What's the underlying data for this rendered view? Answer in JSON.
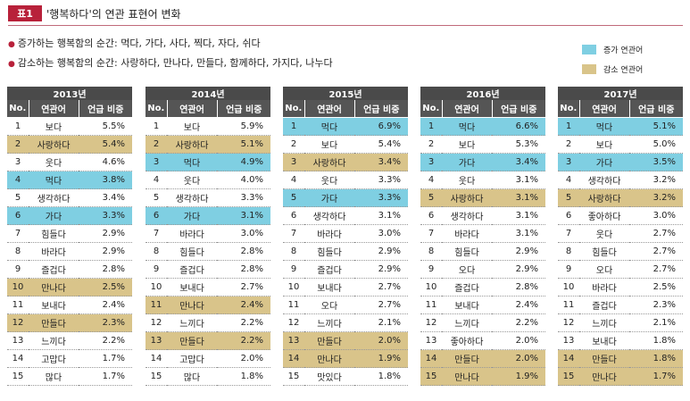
{
  "header": {
    "badge": "표1",
    "title": "'행복하다'의 연관 표현어 변화"
  },
  "bullets": {
    "increase": "증가하는 행복함의 순간: 먹다, 가다, 사다, 찍다, 자다, 쉬다",
    "decrease": "감소하는 행복함의 순간: 사랑하다, 만나다, 만들다, 함께하다, 가지다, 나누다"
  },
  "legend": {
    "increase_label": "증가 연관어",
    "decrease_label": "감소 연관어"
  },
  "colors": {
    "increase": "#7fcfe2",
    "decrease": "#d9c48a",
    "header": "#4a4a4a",
    "accent": "#b8213a"
  },
  "columns": {
    "no": "No.",
    "word": "연관어",
    "pct": "언급 비중"
  },
  "tables": [
    {
      "year": "2013년",
      "rows": [
        {
          "no": "1",
          "word": "보다",
          "pct": "5.5%",
          "hl": ""
        },
        {
          "no": "2",
          "word": "사랑하다",
          "pct": "5.4%",
          "hl": "dec"
        },
        {
          "no": "3",
          "word": "웃다",
          "pct": "4.6%",
          "hl": ""
        },
        {
          "no": "4",
          "word": "먹다",
          "pct": "3.8%",
          "hl": "inc"
        },
        {
          "no": "5",
          "word": "생각하다",
          "pct": "3.4%",
          "hl": ""
        },
        {
          "no": "6",
          "word": "가다",
          "pct": "3.3%",
          "hl": "inc"
        },
        {
          "no": "7",
          "word": "힘들다",
          "pct": "2.9%",
          "hl": ""
        },
        {
          "no": "8",
          "word": "바라다",
          "pct": "2.9%",
          "hl": ""
        },
        {
          "no": "9",
          "word": "즐겁다",
          "pct": "2.8%",
          "hl": ""
        },
        {
          "no": "10",
          "word": "만나다",
          "pct": "2.5%",
          "hl": "dec"
        },
        {
          "no": "11",
          "word": "보내다",
          "pct": "2.4%",
          "hl": ""
        },
        {
          "no": "12",
          "word": "만들다",
          "pct": "2.3%",
          "hl": "dec"
        },
        {
          "no": "13",
          "word": "느끼다",
          "pct": "2.2%",
          "hl": ""
        },
        {
          "no": "14",
          "word": "고맙다",
          "pct": "1.7%",
          "hl": ""
        },
        {
          "no": "15",
          "word": "많다",
          "pct": "1.7%",
          "hl": ""
        }
      ]
    },
    {
      "year": "2014년",
      "rows": [
        {
          "no": "1",
          "word": "보다",
          "pct": "5.9%",
          "hl": ""
        },
        {
          "no": "2",
          "word": "사랑하다",
          "pct": "5.1%",
          "hl": "dec"
        },
        {
          "no": "3",
          "word": "먹다",
          "pct": "4.9%",
          "hl": "inc"
        },
        {
          "no": "4",
          "word": "웃다",
          "pct": "4.0%",
          "hl": ""
        },
        {
          "no": "5",
          "word": "생각하다",
          "pct": "3.3%",
          "hl": ""
        },
        {
          "no": "6",
          "word": "가다",
          "pct": "3.1%",
          "hl": "inc"
        },
        {
          "no": "7",
          "word": "바라다",
          "pct": "3.0%",
          "hl": ""
        },
        {
          "no": "8",
          "word": "힘들다",
          "pct": "2.8%",
          "hl": ""
        },
        {
          "no": "9",
          "word": "즐겁다",
          "pct": "2.8%",
          "hl": ""
        },
        {
          "no": "10",
          "word": "보내다",
          "pct": "2.7%",
          "hl": ""
        },
        {
          "no": "11",
          "word": "만나다",
          "pct": "2.4%",
          "hl": "dec"
        },
        {
          "no": "12",
          "word": "느끼다",
          "pct": "2.2%",
          "hl": ""
        },
        {
          "no": "13",
          "word": "만들다",
          "pct": "2.2%",
          "hl": "dec"
        },
        {
          "no": "14",
          "word": "고맙다",
          "pct": "2.0%",
          "hl": ""
        },
        {
          "no": "15",
          "word": "많다",
          "pct": "1.8%",
          "hl": ""
        }
      ]
    },
    {
      "year": "2015년",
      "rows": [
        {
          "no": "1",
          "word": "먹다",
          "pct": "6.9%",
          "hl": "inc"
        },
        {
          "no": "2",
          "word": "보다",
          "pct": "5.4%",
          "hl": ""
        },
        {
          "no": "3",
          "word": "사랑하다",
          "pct": "3.4%",
          "hl": "dec"
        },
        {
          "no": "4",
          "word": "웃다",
          "pct": "3.3%",
          "hl": ""
        },
        {
          "no": "5",
          "word": "가다",
          "pct": "3.3%",
          "hl": "inc"
        },
        {
          "no": "6",
          "word": "생각하다",
          "pct": "3.1%",
          "hl": ""
        },
        {
          "no": "7",
          "word": "바라다",
          "pct": "3.0%",
          "hl": ""
        },
        {
          "no": "8",
          "word": "힘들다",
          "pct": "2.9%",
          "hl": ""
        },
        {
          "no": "9",
          "word": "즐겁다",
          "pct": "2.9%",
          "hl": ""
        },
        {
          "no": "10",
          "word": "보내다",
          "pct": "2.7%",
          "hl": ""
        },
        {
          "no": "11",
          "word": "오다",
          "pct": "2.7%",
          "hl": ""
        },
        {
          "no": "12",
          "word": "느끼다",
          "pct": "2.1%",
          "hl": ""
        },
        {
          "no": "13",
          "word": "만들다",
          "pct": "2.0%",
          "hl": "dec"
        },
        {
          "no": "14",
          "word": "만나다",
          "pct": "1.9%",
          "hl": "dec"
        },
        {
          "no": "15",
          "word": "맛있다",
          "pct": "1.8%",
          "hl": ""
        }
      ]
    },
    {
      "year": "2016년",
      "rows": [
        {
          "no": "1",
          "word": "먹다",
          "pct": "6.6%",
          "hl": "inc"
        },
        {
          "no": "2",
          "word": "보다",
          "pct": "5.3%",
          "hl": ""
        },
        {
          "no": "3",
          "word": "가다",
          "pct": "3.4%",
          "hl": "inc"
        },
        {
          "no": "4",
          "word": "웃다",
          "pct": "3.1%",
          "hl": ""
        },
        {
          "no": "5",
          "word": "사랑하다",
          "pct": "3.1%",
          "hl": "dec"
        },
        {
          "no": "6",
          "word": "생각하다",
          "pct": "3.1%",
          "hl": ""
        },
        {
          "no": "7",
          "word": "바라다",
          "pct": "3.1%",
          "hl": ""
        },
        {
          "no": "8",
          "word": "힘들다",
          "pct": "2.9%",
          "hl": ""
        },
        {
          "no": "9",
          "word": "오다",
          "pct": "2.9%",
          "hl": ""
        },
        {
          "no": "10",
          "word": "즐겁다",
          "pct": "2.8%",
          "hl": ""
        },
        {
          "no": "11",
          "word": "보내다",
          "pct": "2.4%",
          "hl": ""
        },
        {
          "no": "12",
          "word": "느끼다",
          "pct": "2.2%",
          "hl": ""
        },
        {
          "no": "13",
          "word": "좋아하다",
          "pct": "2.0%",
          "hl": ""
        },
        {
          "no": "14",
          "word": "만들다",
          "pct": "2.0%",
          "hl": "dec"
        },
        {
          "no": "15",
          "word": "만나다",
          "pct": "1.9%",
          "hl": "dec"
        }
      ]
    },
    {
      "year": "2017년",
      "rows": [
        {
          "no": "1",
          "word": "먹다",
          "pct": "5.1%",
          "hl": "inc"
        },
        {
          "no": "2",
          "word": "보다",
          "pct": "5.0%",
          "hl": ""
        },
        {
          "no": "3",
          "word": "가다",
          "pct": "3.5%",
          "hl": "inc"
        },
        {
          "no": "4",
          "word": "생각하다",
          "pct": "3.2%",
          "hl": ""
        },
        {
          "no": "5",
          "word": "사랑하다",
          "pct": "3.2%",
          "hl": "dec"
        },
        {
          "no": "6",
          "word": "좋아하다",
          "pct": "3.0%",
          "hl": ""
        },
        {
          "no": "7",
          "word": "웃다",
          "pct": "2.7%",
          "hl": ""
        },
        {
          "no": "8",
          "word": "힘들다",
          "pct": "2.7%",
          "hl": ""
        },
        {
          "no": "9",
          "word": "오다",
          "pct": "2.7%",
          "hl": ""
        },
        {
          "no": "10",
          "word": "바라다",
          "pct": "2.5%",
          "hl": ""
        },
        {
          "no": "11",
          "word": "즐겁다",
          "pct": "2.3%",
          "hl": ""
        },
        {
          "no": "12",
          "word": "느끼다",
          "pct": "2.1%",
          "hl": ""
        },
        {
          "no": "13",
          "word": "보내다",
          "pct": "1.8%",
          "hl": ""
        },
        {
          "no": "14",
          "word": "만들다",
          "pct": "1.8%",
          "hl": "dec"
        },
        {
          "no": "15",
          "word": "만나다",
          "pct": "1.7%",
          "hl": "dec"
        }
      ]
    }
  ]
}
